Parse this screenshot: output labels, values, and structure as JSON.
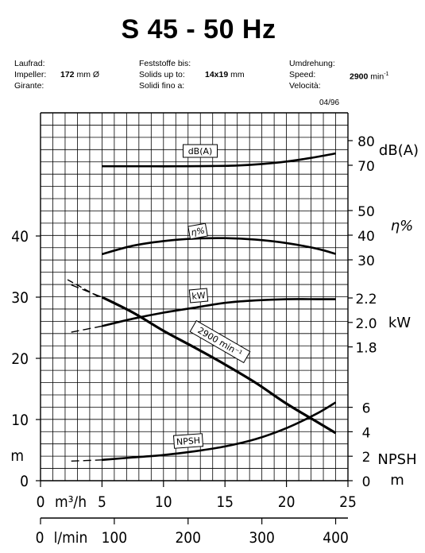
{
  "header": {
    "title": "S 45 - 50 Hz",
    "impeller_labels": [
      "Laufrad:",
      "Impeller:",
      "Girante:"
    ],
    "impeller_value": "172",
    "impeller_unit": "mm Ø",
    "solids_labels": [
      "Feststoffe bis:",
      "Solids up to:",
      "Solidi fino a:"
    ],
    "solids_value": "14x19",
    "solids_unit": "mm",
    "speed_labels": [
      "Umdrehung:",
      "Speed:",
      "Velocità:"
    ],
    "speed_value": "2900",
    "speed_unit": "min",
    "speed_unit_sup": "-1",
    "date": "04/96"
  },
  "chart_data": {
    "type": "line",
    "title": "S 45 - 50 Hz",
    "x_axes": [
      {
        "label": "m³/h",
        "ticks": [
          "0",
          "5",
          "10",
          "15",
          "20",
          "25"
        ],
        "range": [
          0,
          25
        ]
      },
      {
        "label": "l/min",
        "ticks": [
          "0",
          "100",
          "200",
          "300",
          "400"
        ],
        "range": [
          0,
          416.7
        ]
      }
    ],
    "y_axes": [
      {
        "side": "left",
        "label": "m",
        "ticks": [
          "0",
          "10",
          "20",
          "30",
          "40"
        ],
        "range": [
          0,
          53.3
        ]
      },
      {
        "side": "right",
        "label": "dB(A)",
        "ticks": [
          "70",
          "80"
        ]
      },
      {
        "side": "right",
        "label": "η%",
        "ticks": [
          "30",
          "40",
          "50"
        ]
      },
      {
        "side": "right",
        "label": "kW",
        "ticks": [
          "1.8",
          "2.0",
          "2.2"
        ]
      },
      {
        "side": "right",
        "label": "NPSH",
        "unit": "m",
        "ticks": [
          "0",
          "2",
          "4",
          "6"
        ]
      }
    ],
    "grid": true,
    "series": [
      {
        "name": "2900 min⁻¹",
        "axis": "H [m]",
        "x": [
          2.5,
          5,
          7.5,
          10,
          12.5,
          15,
          17.5,
          20,
          22.5,
          24
        ],
        "y": [
          32.0,
          30.0,
          27.5,
          24.5,
          21.8,
          19.0,
          16.0,
          12.6,
          9.6,
          7.8
        ]
      },
      {
        "name": "dB(A)",
        "axis": "dB(A)",
        "x": [
          5,
          8,
          11,
          14,
          16,
          18,
          20,
          22,
          24
        ],
        "y": [
          69.6,
          69.6,
          69.6,
          69.7,
          69.9,
          70.5,
          71.5,
          73.0,
          74.8
        ]
      },
      {
        "name": "η%",
        "axis": "η%",
        "x": [
          5,
          7.5,
          10,
          12.5,
          15,
          17.5,
          20,
          22.5,
          24
        ],
        "y": [
          32.3,
          35.7,
          37.6,
          38.6,
          38.8,
          38.2,
          36.8,
          34.5,
          32.4
        ]
      },
      {
        "name": "kW",
        "axis": "kW",
        "x": [
          2.5,
          5,
          7.5,
          10,
          12.5,
          15,
          17.5,
          20,
          22.5,
          24
        ],
        "y": [
          1.92,
          1.97,
          2.03,
          2.08,
          2.12,
          2.16,
          2.18,
          2.19,
          2.19,
          2.19
        ]
      },
      {
        "name": "NPSH",
        "axis": "NPSH [m]",
        "x": [
          2.5,
          5,
          7.5,
          10,
          12.5,
          15,
          17.5,
          20,
          22.5,
          24
        ],
        "y": [
          1.6,
          1.7,
          1.9,
          2.1,
          2.4,
          2.8,
          3.4,
          4.3,
          5.5,
          6.4
        ]
      }
    ]
  }
}
